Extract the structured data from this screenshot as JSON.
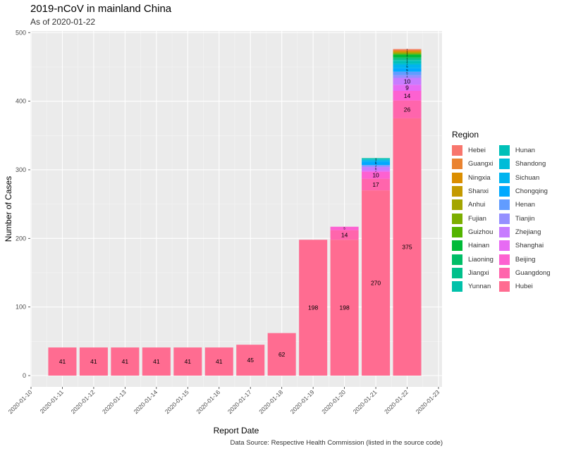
{
  "title": "2019-nCoV in mainland China",
  "subtitle": "As of 2020-01-22",
  "caption": "Data Source: Respective Health Commission (listed in the source code)",
  "chart_data": {
    "type": "bar",
    "stacked": true,
    "xlabel": "Report Date",
    "ylabel": "Number of Cases",
    "ylim": [
      0,
      500
    ],
    "yticks": [
      0,
      100,
      200,
      300,
      400,
      500
    ],
    "xticks": [
      "2020-01-10",
      "2020-01-11",
      "2020-01-12",
      "2020-01-13",
      "2020-01-14",
      "2020-01-15",
      "2020-01-16",
      "2020-01-17",
      "2020-01-18",
      "2020-01-19",
      "2020-01-20",
      "2020-01-21",
      "2020-01-22",
      "2020-01-23"
    ],
    "categories": [
      "2020-01-11",
      "2020-01-12",
      "2020-01-13",
      "2020-01-14",
      "2020-01-15",
      "2020-01-16",
      "2020-01-17",
      "2020-01-18",
      "2020-01-19",
      "2020-01-20",
      "2020-01-21",
      "2020-01-22"
    ],
    "legend_title": "Region",
    "legend_position": "right",
    "grid": true,
    "series": [
      {
        "name": "Hubei",
        "color": "#FF6C91",
        "values": [
          41,
          41,
          41,
          41,
          41,
          41,
          45,
          62,
          198,
          198,
          270,
          375
        ]
      },
      {
        "name": "Guangdong",
        "color": "#FF65AC",
        "values": [
          0,
          0,
          0,
          0,
          0,
          0,
          0,
          0,
          0,
          14,
          17,
          26
        ]
      },
      {
        "name": "Beijing",
        "color": "#FD61D1",
        "values": [
          0,
          0,
          0,
          0,
          0,
          0,
          0,
          0,
          0,
          5,
          10,
          14
        ]
      },
      {
        "name": "Shanghai",
        "color": "#E76BF3",
        "values": [
          0,
          0,
          0,
          0,
          0,
          0,
          0,
          0,
          0,
          0,
          2,
          9
        ]
      },
      {
        "name": "Zhejiang",
        "color": "#C77CFF",
        "values": [
          0,
          0,
          0,
          0,
          0,
          0,
          0,
          0,
          0,
          0,
          5,
          10
        ]
      },
      {
        "name": "Tianjin",
        "color": "#9590FF",
        "values": [
          0,
          0,
          0,
          0,
          0,
          0,
          0,
          0,
          0,
          0,
          2,
          4
        ]
      },
      {
        "name": "Henan",
        "color": "#619CFF",
        "values": [
          0,
          0,
          0,
          0,
          0,
          0,
          0,
          0,
          0,
          0,
          1,
          5
        ]
      },
      {
        "name": "Chongqing",
        "color": "#00A9FF",
        "values": [
          0,
          0,
          0,
          0,
          0,
          0,
          0,
          0,
          0,
          0,
          5,
          5
        ]
      },
      {
        "name": "Sichuan",
        "color": "#00B4EF",
        "values": [
          0,
          0,
          0,
          0,
          0,
          0,
          0,
          0,
          0,
          0,
          2,
          5
        ]
      },
      {
        "name": "Shandong",
        "color": "#00BCD8",
        "values": [
          0,
          0,
          0,
          0,
          0,
          0,
          0,
          0,
          0,
          0,
          1,
          2
        ]
      },
      {
        "name": "Hunan",
        "color": "#00C0B8",
        "values": [
          0,
          0,
          0,
          0,
          0,
          0,
          0,
          0,
          0,
          0,
          1,
          4
        ]
      },
      {
        "name": "Yunnan",
        "color": "#00C1AA",
        "values": [
          0,
          0,
          0,
          0,
          0,
          0,
          0,
          0,
          0,
          0,
          1,
          1
        ]
      },
      {
        "name": "Jiangxi",
        "color": "#00C08B",
        "values": [
          0,
          0,
          0,
          0,
          0,
          0,
          0,
          0,
          0,
          0,
          0,
          2
        ]
      },
      {
        "name": "Liaoning",
        "color": "#00BE67",
        "values": [
          0,
          0,
          0,
          0,
          0,
          0,
          0,
          0,
          0,
          0,
          0,
          2
        ]
      },
      {
        "name": "Hainan",
        "color": "#00BA38",
        "values": [
          0,
          0,
          0,
          0,
          0,
          0,
          0,
          0,
          0,
          0,
          0,
          4
        ]
      },
      {
        "name": "Guizhou",
        "color": "#53B400",
        "values": [
          0,
          0,
          0,
          0,
          0,
          0,
          0,
          0,
          0,
          0,
          0,
          1
        ]
      },
      {
        "name": "Fujian",
        "color": "#7CAE00",
        "values": [
          0,
          0,
          0,
          0,
          0,
          0,
          0,
          0,
          0,
          0,
          0,
          1
        ]
      },
      {
        "name": "Anhui",
        "color": "#A3A500",
        "values": [
          0,
          0,
          0,
          0,
          0,
          0,
          0,
          0,
          0,
          0,
          0,
          1
        ]
      },
      {
        "name": "Shanxi",
        "color": "#C49A00",
        "values": [
          0,
          0,
          0,
          0,
          0,
          0,
          0,
          0,
          0,
          0,
          0,
          1
        ]
      },
      {
        "name": "Ningxia",
        "color": "#DB8E00",
        "values": [
          0,
          0,
          0,
          0,
          0,
          0,
          0,
          0,
          0,
          0,
          0,
          1
        ]
      },
      {
        "name": "Guangxi",
        "color": "#EA8331",
        "values": [
          0,
          0,
          0,
          0,
          0,
          0,
          0,
          0,
          0,
          0,
          0,
          2
        ]
      },
      {
        "name": "Hebei",
        "color": "#F8766D",
        "values": [
          0,
          0,
          0,
          0,
          0,
          0,
          0,
          0,
          0,
          0,
          0,
          1
        ]
      }
    ]
  },
  "legend": {
    "columns": [
      [
        "Hebei",
        "Guangxi",
        "Ningxia",
        "Shanxi",
        "Anhui",
        "Fujian",
        "Guizhou",
        "Hainan",
        "Liaoning",
        "Jiangxi",
        "Yunnan"
      ],
      [
        "Hunan",
        "Shandong",
        "Sichuan",
        "Chongqing",
        "Henan",
        "Tianjin",
        "Zhejiang",
        "Shanghai",
        "Beijing",
        "Guangdong",
        "Hubei"
      ]
    ]
  }
}
